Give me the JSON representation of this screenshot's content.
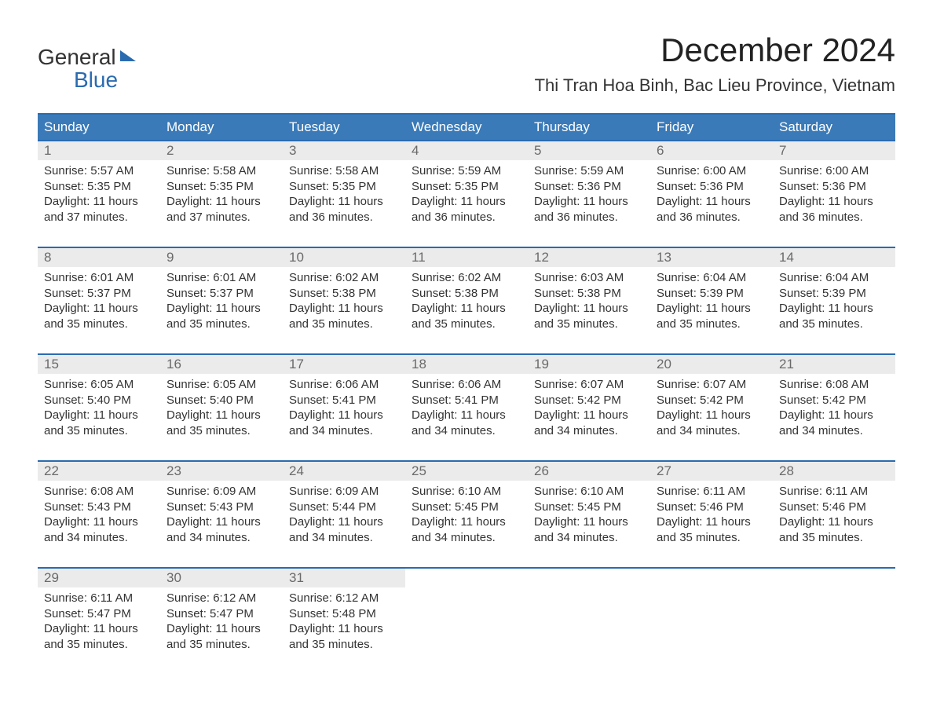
{
  "brand": {
    "word1": "General",
    "word2": "Blue",
    "text_color": "#333333",
    "accent_color": "#2a6bb0"
  },
  "header": {
    "month_title": "December 2024",
    "location": "Thi Tran Hoa Binh, Bac Lieu Province, Vietnam"
  },
  "colors": {
    "header_bg": "#3a7ab8",
    "header_border": "#2a6bb0",
    "day_number_bg": "#ebebeb",
    "day_number_color": "#6a6a6a",
    "body_text": "#333333",
    "page_bg": "#ffffff"
  },
  "weekdays": [
    "Sunday",
    "Monday",
    "Tuesday",
    "Wednesday",
    "Thursday",
    "Friday",
    "Saturday"
  ],
  "weeks": [
    [
      {
        "n": "1",
        "sunrise": "Sunrise: 5:57 AM",
        "sunset": "Sunset: 5:35 PM",
        "daylight": "Daylight: 11 hours and 37 minutes."
      },
      {
        "n": "2",
        "sunrise": "Sunrise: 5:58 AM",
        "sunset": "Sunset: 5:35 PM",
        "daylight": "Daylight: 11 hours and 37 minutes."
      },
      {
        "n": "3",
        "sunrise": "Sunrise: 5:58 AM",
        "sunset": "Sunset: 5:35 PM",
        "daylight": "Daylight: 11 hours and 36 minutes."
      },
      {
        "n": "4",
        "sunrise": "Sunrise: 5:59 AM",
        "sunset": "Sunset: 5:35 PM",
        "daylight": "Daylight: 11 hours and 36 minutes."
      },
      {
        "n": "5",
        "sunrise": "Sunrise: 5:59 AM",
        "sunset": "Sunset: 5:36 PM",
        "daylight": "Daylight: 11 hours and 36 minutes."
      },
      {
        "n": "6",
        "sunrise": "Sunrise: 6:00 AM",
        "sunset": "Sunset: 5:36 PM",
        "daylight": "Daylight: 11 hours and 36 minutes."
      },
      {
        "n": "7",
        "sunrise": "Sunrise: 6:00 AM",
        "sunset": "Sunset: 5:36 PM",
        "daylight": "Daylight: 11 hours and 36 minutes."
      }
    ],
    [
      {
        "n": "8",
        "sunrise": "Sunrise: 6:01 AM",
        "sunset": "Sunset: 5:37 PM",
        "daylight": "Daylight: 11 hours and 35 minutes."
      },
      {
        "n": "9",
        "sunrise": "Sunrise: 6:01 AM",
        "sunset": "Sunset: 5:37 PM",
        "daylight": "Daylight: 11 hours and 35 minutes."
      },
      {
        "n": "10",
        "sunrise": "Sunrise: 6:02 AM",
        "sunset": "Sunset: 5:38 PM",
        "daylight": "Daylight: 11 hours and 35 minutes."
      },
      {
        "n": "11",
        "sunrise": "Sunrise: 6:02 AM",
        "sunset": "Sunset: 5:38 PM",
        "daylight": "Daylight: 11 hours and 35 minutes."
      },
      {
        "n": "12",
        "sunrise": "Sunrise: 6:03 AM",
        "sunset": "Sunset: 5:38 PM",
        "daylight": "Daylight: 11 hours and 35 minutes."
      },
      {
        "n": "13",
        "sunrise": "Sunrise: 6:04 AM",
        "sunset": "Sunset: 5:39 PM",
        "daylight": "Daylight: 11 hours and 35 minutes."
      },
      {
        "n": "14",
        "sunrise": "Sunrise: 6:04 AM",
        "sunset": "Sunset: 5:39 PM",
        "daylight": "Daylight: 11 hours and 35 minutes."
      }
    ],
    [
      {
        "n": "15",
        "sunrise": "Sunrise: 6:05 AM",
        "sunset": "Sunset: 5:40 PM",
        "daylight": "Daylight: 11 hours and 35 minutes."
      },
      {
        "n": "16",
        "sunrise": "Sunrise: 6:05 AM",
        "sunset": "Sunset: 5:40 PM",
        "daylight": "Daylight: 11 hours and 35 minutes."
      },
      {
        "n": "17",
        "sunrise": "Sunrise: 6:06 AM",
        "sunset": "Sunset: 5:41 PM",
        "daylight": "Daylight: 11 hours and 34 minutes."
      },
      {
        "n": "18",
        "sunrise": "Sunrise: 6:06 AM",
        "sunset": "Sunset: 5:41 PM",
        "daylight": "Daylight: 11 hours and 34 minutes."
      },
      {
        "n": "19",
        "sunrise": "Sunrise: 6:07 AM",
        "sunset": "Sunset: 5:42 PM",
        "daylight": "Daylight: 11 hours and 34 minutes."
      },
      {
        "n": "20",
        "sunrise": "Sunrise: 6:07 AM",
        "sunset": "Sunset: 5:42 PM",
        "daylight": "Daylight: 11 hours and 34 minutes."
      },
      {
        "n": "21",
        "sunrise": "Sunrise: 6:08 AM",
        "sunset": "Sunset: 5:42 PM",
        "daylight": "Daylight: 11 hours and 34 minutes."
      }
    ],
    [
      {
        "n": "22",
        "sunrise": "Sunrise: 6:08 AM",
        "sunset": "Sunset: 5:43 PM",
        "daylight": "Daylight: 11 hours and 34 minutes."
      },
      {
        "n": "23",
        "sunrise": "Sunrise: 6:09 AM",
        "sunset": "Sunset: 5:43 PM",
        "daylight": "Daylight: 11 hours and 34 minutes."
      },
      {
        "n": "24",
        "sunrise": "Sunrise: 6:09 AM",
        "sunset": "Sunset: 5:44 PM",
        "daylight": "Daylight: 11 hours and 34 minutes."
      },
      {
        "n": "25",
        "sunrise": "Sunrise: 6:10 AM",
        "sunset": "Sunset: 5:45 PM",
        "daylight": "Daylight: 11 hours and 34 minutes."
      },
      {
        "n": "26",
        "sunrise": "Sunrise: 6:10 AM",
        "sunset": "Sunset: 5:45 PM",
        "daylight": "Daylight: 11 hours and 34 minutes."
      },
      {
        "n": "27",
        "sunrise": "Sunrise: 6:11 AM",
        "sunset": "Sunset: 5:46 PM",
        "daylight": "Daylight: 11 hours and 35 minutes."
      },
      {
        "n": "28",
        "sunrise": "Sunrise: 6:11 AM",
        "sunset": "Sunset: 5:46 PM",
        "daylight": "Daylight: 11 hours and 35 minutes."
      }
    ],
    [
      {
        "n": "29",
        "sunrise": "Sunrise: 6:11 AM",
        "sunset": "Sunset: 5:47 PM",
        "daylight": "Daylight: 11 hours and 35 minutes."
      },
      {
        "n": "30",
        "sunrise": "Sunrise: 6:12 AM",
        "sunset": "Sunset: 5:47 PM",
        "daylight": "Daylight: 11 hours and 35 minutes."
      },
      {
        "n": "31",
        "sunrise": "Sunrise: 6:12 AM",
        "sunset": "Sunset: 5:48 PM",
        "daylight": "Daylight: 11 hours and 35 minutes."
      },
      null,
      null,
      null,
      null
    ]
  ]
}
